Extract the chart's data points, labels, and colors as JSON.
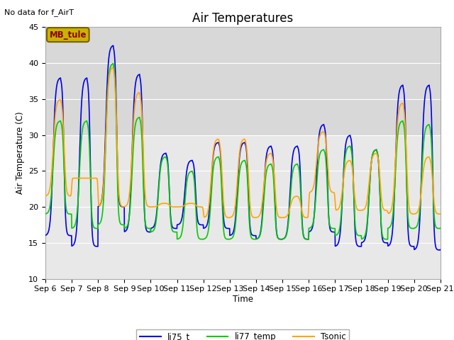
{
  "title": "Air Temperatures",
  "top_left_text": "No data for f_AirT",
  "ylabel": "Air Temperature (C)",
  "xlabel": "Time",
  "ylim": [
    10,
    45
  ],
  "legend_box_label": "MB_tule",
  "legend_box_color": "#c8b400",
  "legend_box_text_color": "#8b0000",
  "bg_color": "#e8e8e8",
  "bg_color_upper": "#d8d8d8",
  "x_tick_labels": [
    "Sep 6",
    "Sep 7",
    "Sep 8",
    "Sep 9",
    "Sep 10",
    "Sep 11",
    "Sep 12",
    "Sep 13",
    "Sep 14",
    "Sep 15",
    "Sep 16",
    "Sep 17",
    "Sep 18",
    "Sep 19",
    "Sep 20",
    "Sep 21"
  ],
  "series": {
    "li75_t": {
      "color": "#0000ee",
      "linewidth": 1.2
    },
    "li77_temp": {
      "color": "#00cc00",
      "linewidth": 1.2
    },
    "Tsonic": {
      "color": "#ffa500",
      "linewidth": 1.2
    }
  },
  "days": 15,
  "pts_per_day": 144,
  "daily_max_li75": [
    38,
    38,
    42.5,
    38.5,
    27.5,
    26.5,
    29,
    29,
    28.5,
    28.5,
    31.5,
    30,
    28,
    37,
    37
  ],
  "daily_min_li75": [
    16,
    14.5,
    20,
    16.5,
    17,
    17.5,
    17,
    16,
    15.5,
    15.5,
    16.5,
    14.5,
    15,
    14.5,
    14
  ],
  "daily_max_li77": [
    32,
    32,
    40,
    32.5,
    27,
    25,
    27,
    26.5,
    26,
    26,
    28,
    28.5,
    28,
    32,
    31.5
  ],
  "daily_min_li77": [
    19,
    17,
    17.5,
    17,
    16.5,
    15.5,
    15.5,
    15.5,
    15.5,
    15.5,
    17,
    16,
    15.5,
    17,
    17
  ],
  "daily_max_tsonic": [
    35,
    24,
    39.5,
    36,
    20.5,
    20.5,
    29.5,
    29.5,
    27.5,
    21.5,
    30.5,
    26.5,
    27.5,
    34.5,
    27
  ],
  "daily_min_tsonic": [
    21.5,
    24,
    20,
    20,
    20,
    20,
    18.5,
    18.5,
    18.5,
    18.5,
    22,
    19.5,
    19.5,
    19,
    19
  ],
  "peak_time": 0.58,
  "rise_sharpness": 3.0,
  "fall_sharpness": 3.5
}
